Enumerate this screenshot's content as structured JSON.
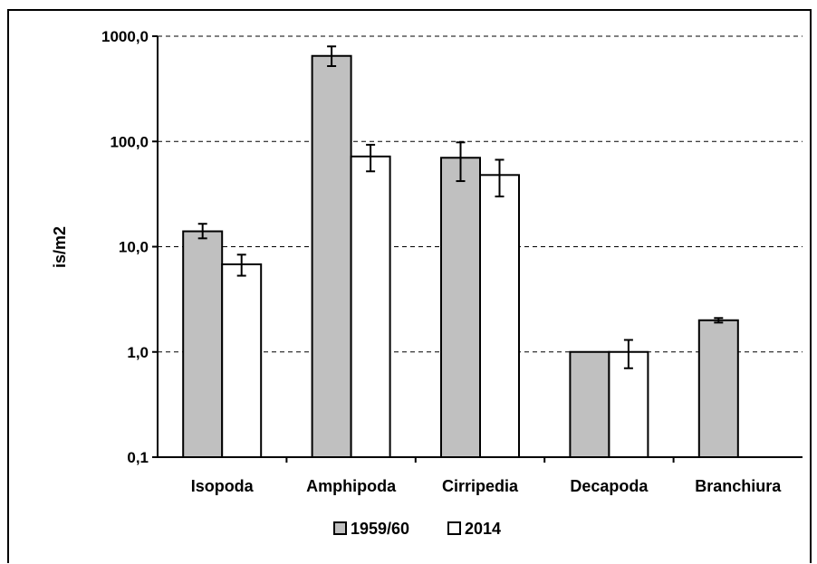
{
  "chart_data": {
    "type": "bar",
    "y_scale": "log",
    "ylabel": "is/m2",
    "ylim": [
      0.1,
      1000
    ],
    "y_ticks": [
      {
        "value": 0.1,
        "label": "0,1"
      },
      {
        "value": 1,
        "label": "1,0"
      },
      {
        "value": 10,
        "label": "10,0"
      },
      {
        "value": 100,
        "label": "100,0"
      },
      {
        "value": 1000,
        "label": "1000,0"
      }
    ],
    "grid": "dashed horizontal",
    "legend_position": "bottom",
    "categories": [
      "Isopoda",
      "Amphipoda",
      "Cirripedia",
      "Decapoda",
      "Branchiura"
    ],
    "series": [
      {
        "name": "1959/60",
        "color": "#c0c0c0",
        "values": [
          14.0,
          650,
          70,
          1.0,
          2.0
        ],
        "err_low": [
          12.0,
          520,
          42,
          1.0,
          1.9
        ],
        "err_high": [
          16.5,
          800,
          98,
          1.0,
          2.1
        ]
      },
      {
        "name": "2014",
        "color": "#ffffff",
        "values": [
          6.8,
          72,
          48,
          1.0,
          null
        ],
        "err_low": [
          5.3,
          52,
          30,
          0.7,
          null
        ],
        "err_high": [
          8.4,
          93,
          67,
          1.3,
          null
        ]
      }
    ]
  }
}
